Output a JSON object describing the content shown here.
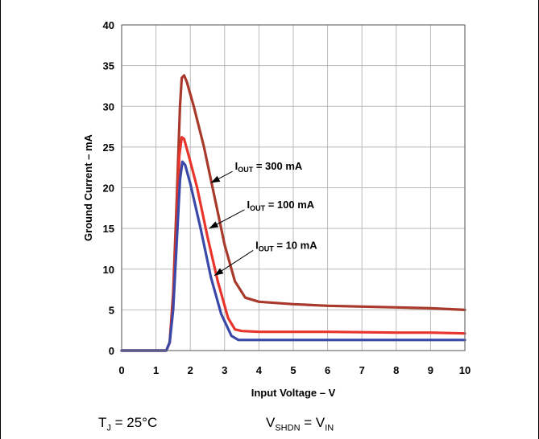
{
  "chart_data": {
    "type": "line",
    "title": "",
    "xlabel": "Input Voltage – V",
    "ylabel": "Ground Current – mA",
    "xlim": [
      0,
      10
    ],
    "ylim": [
      0,
      40
    ],
    "xticks": [
      "0",
      "1",
      "2",
      "3",
      "4",
      "5",
      "6",
      "7",
      "8",
      "9",
      "10"
    ],
    "yticks": [
      "0",
      "5",
      "10",
      "15",
      "20",
      "25",
      "30",
      "35",
      "40"
    ],
    "grid": true,
    "series": [
      {
        "name": "I_OUT = 300 mA",
        "color": "#a8392b",
        "points": [
          [
            0,
            0
          ],
          [
            1.3,
            0
          ],
          [
            1.4,
            1.0
          ],
          [
            1.5,
            7.0
          ],
          [
            1.6,
            18.0
          ],
          [
            1.7,
            30.0
          ],
          [
            1.75,
            33.5
          ],
          [
            1.82,
            33.8
          ],
          [
            1.9,
            33.0
          ],
          [
            2.1,
            30.0
          ],
          [
            2.4,
            25.0
          ],
          [
            2.7,
            19.0
          ],
          [
            3.0,
            13.0
          ],
          [
            3.3,
            8.5
          ],
          [
            3.6,
            6.5
          ],
          [
            4.0,
            6.0
          ],
          [
            5.0,
            5.7
          ],
          [
            6.0,
            5.5
          ],
          [
            7.0,
            5.4
          ],
          [
            8.0,
            5.3
          ],
          [
            9.0,
            5.2
          ],
          [
            10.0,
            5.0
          ]
        ]
      },
      {
        "name": "I_OUT = 100 mA",
        "color": "#e8342b",
        "points": [
          [
            0,
            0
          ],
          [
            1.3,
            0
          ],
          [
            1.4,
            1.0
          ],
          [
            1.5,
            6.0
          ],
          [
            1.6,
            15.0
          ],
          [
            1.68,
            24.0
          ],
          [
            1.75,
            26.2
          ],
          [
            1.82,
            26.0
          ],
          [
            1.95,
            24.0
          ],
          [
            2.2,
            20.0
          ],
          [
            2.5,
            14.0
          ],
          [
            2.8,
            8.5
          ],
          [
            3.1,
            4.0
          ],
          [
            3.3,
            2.6
          ],
          [
            3.5,
            2.4
          ],
          [
            4.0,
            2.3
          ],
          [
            5.0,
            2.3
          ],
          [
            6.0,
            2.3
          ],
          [
            7.0,
            2.25
          ],
          [
            8.0,
            2.2
          ],
          [
            9.0,
            2.2
          ],
          [
            10.0,
            2.1
          ]
        ]
      },
      {
        "name": "I_OUT = 10 mA",
        "color": "#3a48a8",
        "points": [
          [
            0,
            0
          ],
          [
            1.3,
            0
          ],
          [
            1.4,
            1.0
          ],
          [
            1.5,
            5.0
          ],
          [
            1.6,
            13.0
          ],
          [
            1.7,
            21.0
          ],
          [
            1.77,
            23.2
          ],
          [
            1.85,
            22.8
          ],
          [
            2.0,
            20.5
          ],
          [
            2.3,
            15.0
          ],
          [
            2.6,
            9.0
          ],
          [
            2.9,
            4.5
          ],
          [
            3.2,
            1.8
          ],
          [
            3.4,
            1.3
          ],
          [
            4.0,
            1.3
          ],
          [
            6.0,
            1.3
          ],
          [
            8.0,
            1.3
          ],
          [
            10.0,
            1.3
          ]
        ]
      }
    ],
    "annotations": [
      {
        "main": "I",
        "sub": "OUT",
        "rest": " = 300 mA",
        "x": 3.3,
        "y": 22.2,
        "arrow_to": [
          2.6,
          20.6
        ]
      },
      {
        "main": "I",
        "sub": "OUT",
        "rest": " = 100 mA",
        "x": 3.65,
        "y": 17.5,
        "arrow_to": [
          2.55,
          15.0
        ]
      },
      {
        "main": "I",
        "sub": "OUT",
        "rest": " = 10 mA",
        "x": 3.9,
        "y": 12.5,
        "arrow_to": [
          2.7,
          9.2
        ]
      }
    ]
  },
  "conditions": {
    "tj_main": "T",
    "tj_sub": "J",
    "tj_rest": " = 25°C",
    "v_main": "V",
    "v_sub": "SHDN",
    "v_mid": " = V",
    "v_sub2": "IN"
  }
}
